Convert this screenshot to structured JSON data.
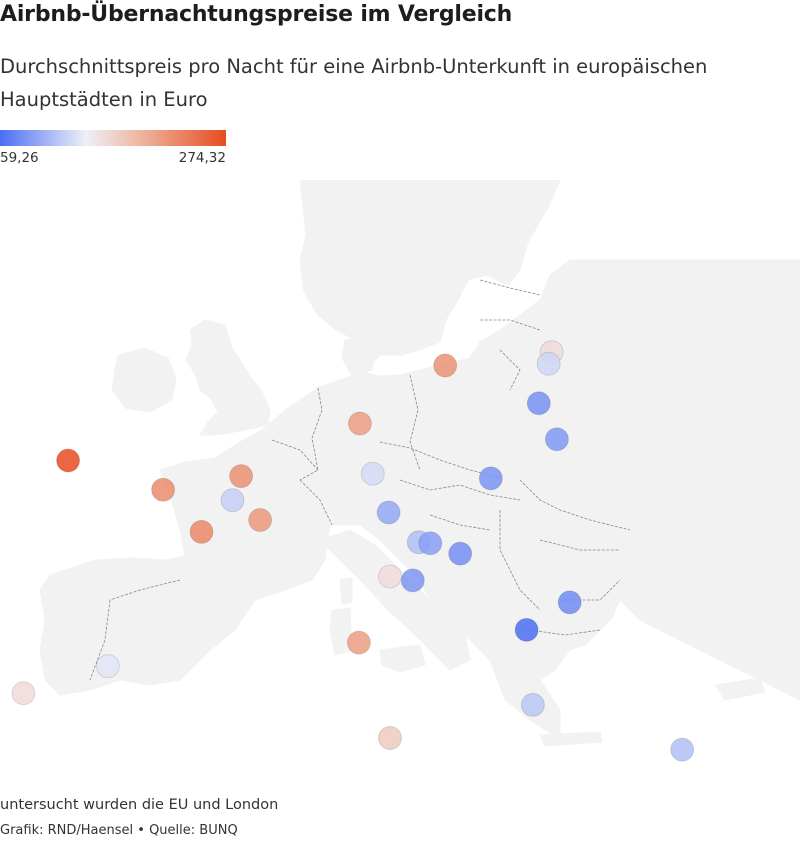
{
  "title": "Airbnb-Übernachtungspreise im Vergleich",
  "subtitle": "Durchschnittspreis pro Nacht für eine Airbnb-Unterkunft in europäischen Hauptstädten in Euro",
  "legend": {
    "min_label": "59,26",
    "max_label": "274,32",
    "min": 59.26,
    "max": 274.32,
    "colors": [
      "#4b6ef2",
      "#eef0f7",
      "#eeb6a0",
      "#e64c21"
    ]
  },
  "chart_data": {
    "type": "scatter",
    "scale": "color-by-price",
    "unit": "Euro",
    "points": [
      {
        "lon": -6.26,
        "lat": 53.35,
        "value": 274
      },
      {
        "lon": -0.13,
        "lat": 51.51,
        "value": 225
      },
      {
        "lon": 2.35,
        "lat": 48.86,
        "value": 228
      },
      {
        "lon": 4.9,
        "lat": 52.37,
        "value": 222
      },
      {
        "lon": 4.35,
        "lat": 50.85,
        "value": 120
      },
      {
        "lon": 6.13,
        "lat": 49.61,
        "value": 215
      },
      {
        "lon": 12.57,
        "lat": 55.68,
        "value": 212
      },
      {
        "lon": 18.07,
        "lat": 59.33,
        "value": 220
      },
      {
        "lon": 24.94,
        "lat": 60.17,
        "value": 160
      },
      {
        "lon": 24.75,
        "lat": 59.44,
        "value": 125
      },
      {
        "lon": 24.11,
        "lat": 56.95,
        "value": 82
      },
      {
        "lon": 25.28,
        "lat": 54.69,
        "value": 86
      },
      {
        "lon": 13.4,
        "lat": 52.52,
        "value": 128
      },
      {
        "lon": 21.01,
        "lat": 52.23,
        "value": 83
      },
      {
        "lon": 14.42,
        "lat": 50.08,
        "value": 96
      },
      {
        "lon": 16.37,
        "lat": 48.21,
        "value": 110
      },
      {
        "lon": 17.11,
        "lat": 48.15,
        "value": 90
      },
      {
        "lon": 19.04,
        "lat": 47.5,
        "value": 80
      },
      {
        "lon": 14.51,
        "lat": 46.06,
        "value": 158
      },
      {
        "lon": 15.98,
        "lat": 45.81,
        "value": 84
      },
      {
        "lon": 26.1,
        "lat": 44.43,
        "value": 78
      },
      {
        "lon": 23.32,
        "lat": 42.7,
        "value": 59.26
      },
      {
        "lon": 12.5,
        "lat": 41.9,
        "value": 212
      },
      {
        "lon": -3.7,
        "lat": 40.42,
        "value": 135
      },
      {
        "lon": -9.14,
        "lat": 38.72,
        "value": 160
      },
      {
        "lon": 23.73,
        "lat": 37.98,
        "value": 115
      },
      {
        "lon": 33.36,
        "lat": 35.17,
        "value": 110
      },
      {
        "lon": 14.51,
        "lat": 35.9,
        "value": 175
      }
    ]
  },
  "footer": {
    "note": "untersucht wurden die EU und London",
    "credit_graphic": "Grafik: RND/Haensel",
    "separator": "•",
    "credit_source": "Quelle: BUNQ"
  }
}
